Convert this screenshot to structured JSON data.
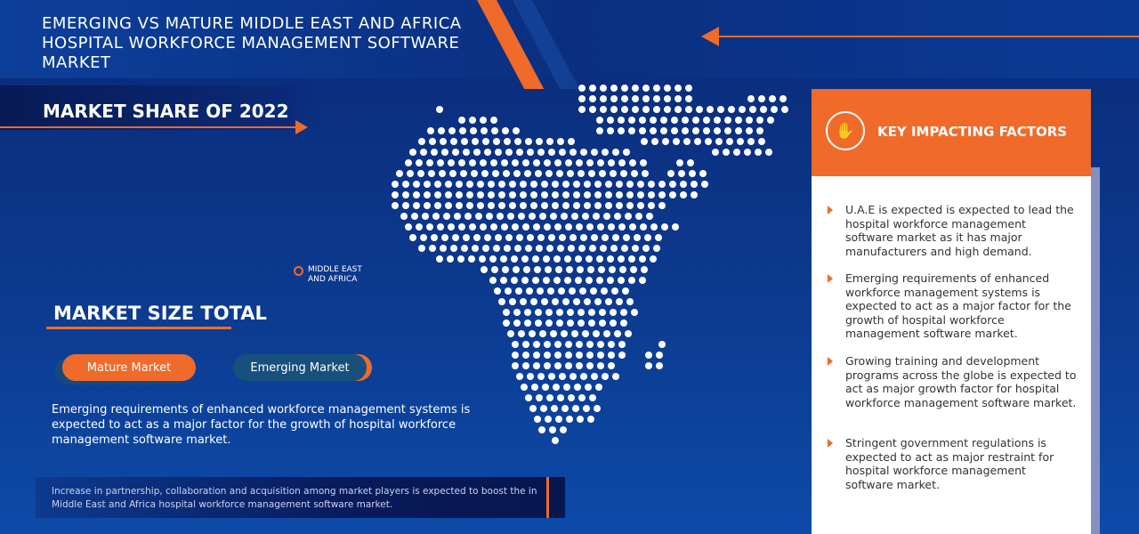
{
  "header": {
    "title": "EMERGING VS MATURE MIDDLE EAST AND AFRICA HOSPITAL WORKFORCE MANAGEMENT SOFTWARE MARKET"
  },
  "share": {
    "title": "MARKET SHARE OF 2022"
  },
  "map": {
    "region_line1": "MIDDLE EAST",
    "region_line2": "AND AFRICA",
    "icon": "location-pin-icon"
  },
  "size": {
    "title": "MARKET SIZE TOTAL",
    "mature_label": "Mature Market",
    "emerging_label": "Emerging Market",
    "description": "Emerging requirements of enhanced workforce management systems is expected to act as a major factor for the growth of hospital workforce management software market."
  },
  "footer": {
    "text": "Increase in partnership, collaboration and acquisition among market players is expected to boost the in Middle East and Africa hospital workforce management software market."
  },
  "factors": {
    "title": "KEY IMPACTING FACTORS",
    "icon": "hand-money-icon",
    "items": [
      "U.A.E is expected is expected to lead the hospital workforce management software market as it has major manufacturers and high demand.",
      "Emerging requirements of enhanced workforce management systems is expected to act as a major factor for the growth of hospital workforce management software market.",
      "Growing training and development programs across the globe is expected to act as major growth factor for hospital workforce management software market.",
      "Stringent government regulations is expected to act as major restraint for hospital workforce management software market."
    ]
  },
  "colors": {
    "accent": "#f06a2a",
    "background": "#0a2a78",
    "emerging": "#17507c"
  }
}
